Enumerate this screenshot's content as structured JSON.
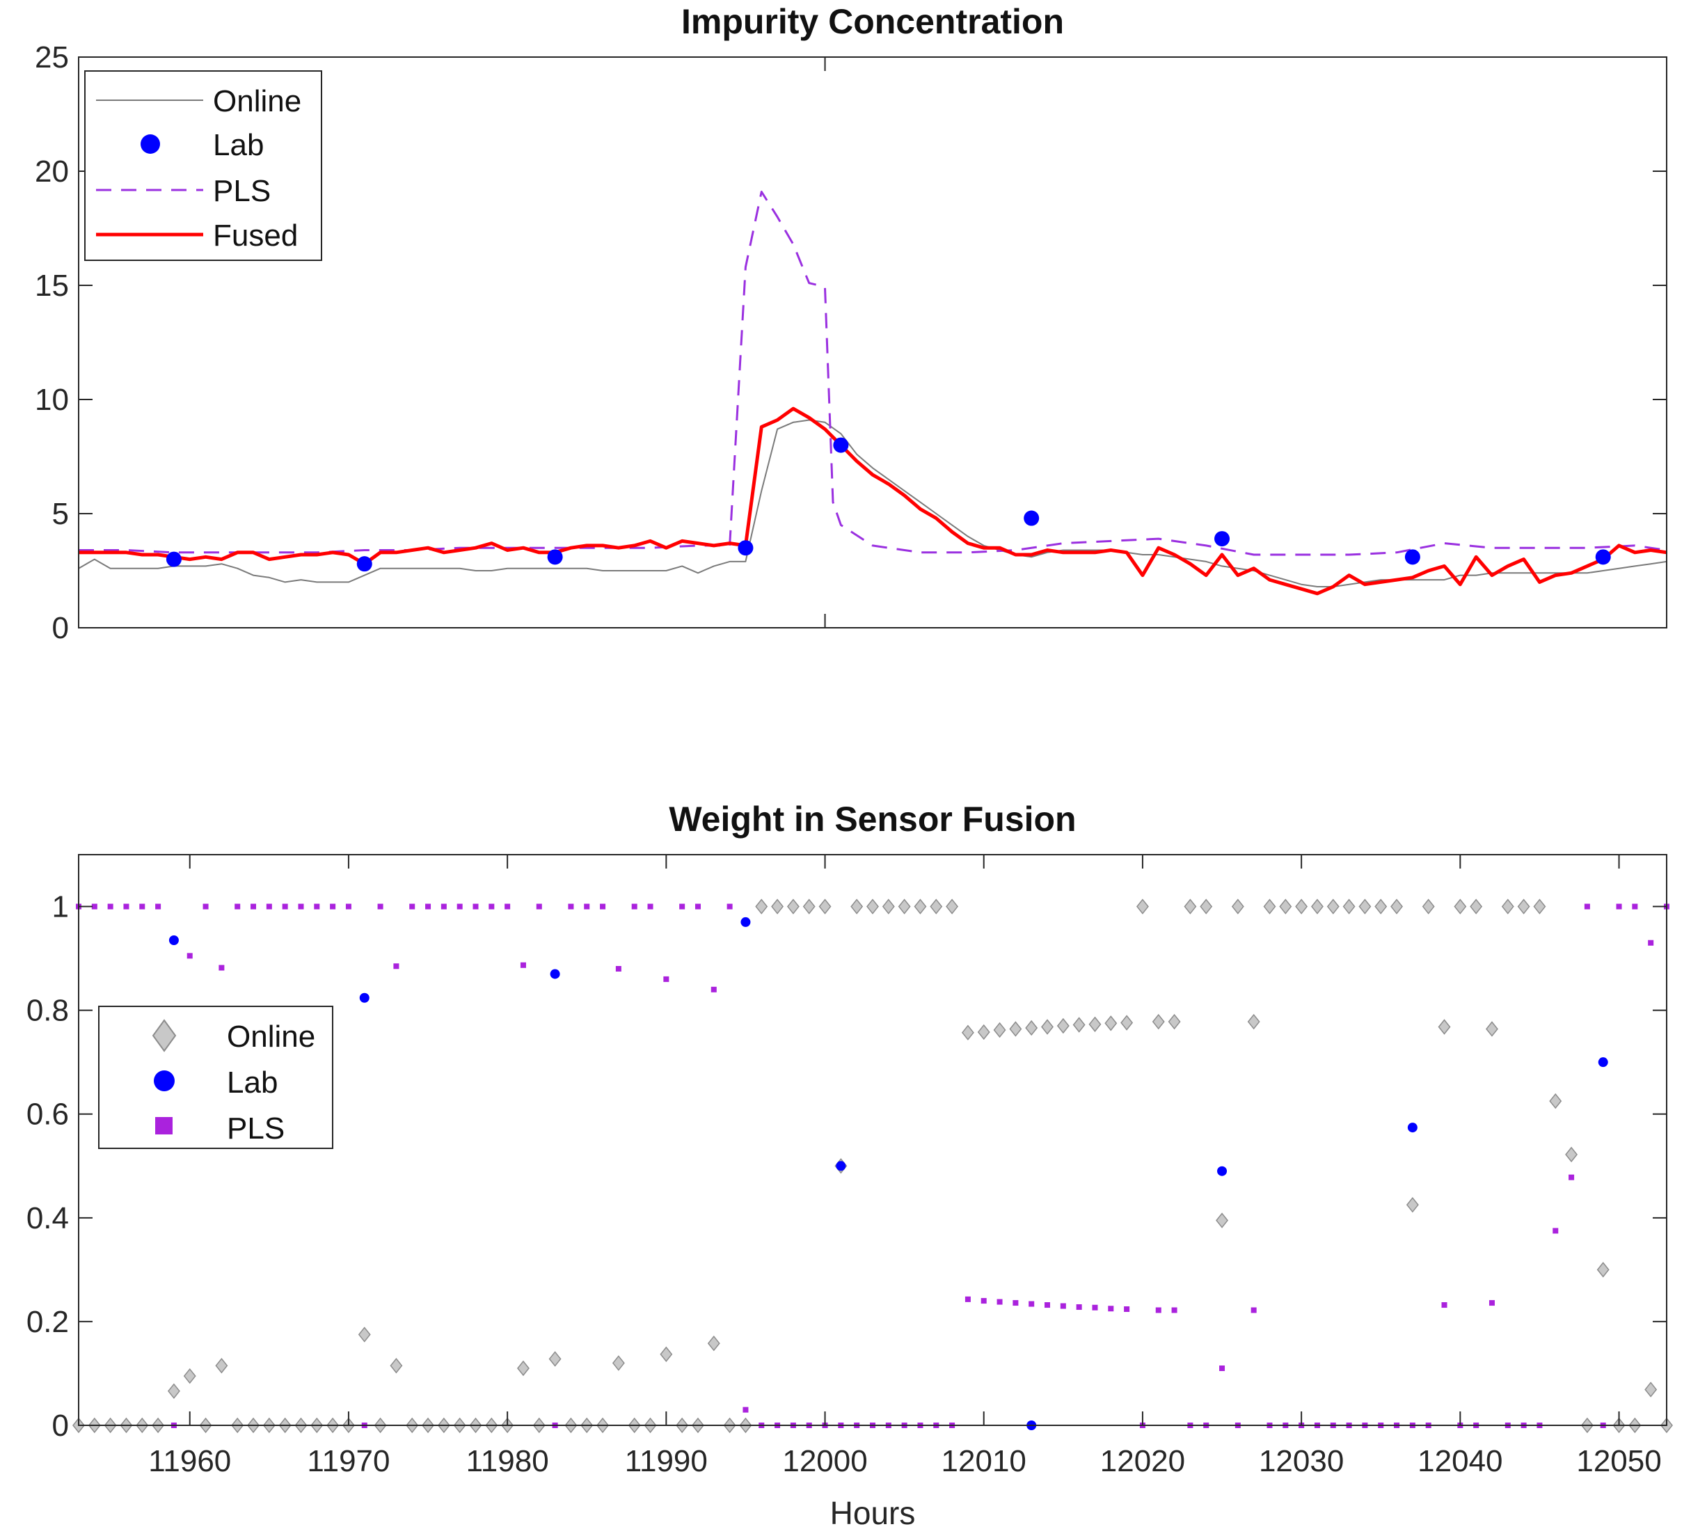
{
  "chart_data": [
    {
      "type": "line",
      "title": "Impurity Concentration",
      "xlabel": "",
      "ylabel": "",
      "xlim": [
        11953,
        12053
      ],
      "ylim": [
        0,
        25
      ],
      "yticks": [
        0,
        5,
        10,
        15,
        20,
        25
      ],
      "ytick_labels": [
        "0",
        "5",
        "10",
        "15",
        "20",
        "25"
      ],
      "xticks": [
        12000
      ],
      "legend_position": "top-left",
      "series": [
        {
          "name": "Online",
          "style": "thin-line",
          "color": "#7a7a7a",
          "x": [
            11953,
            11954,
            11955,
            11956,
            11957,
            11958,
            11959,
            11960,
            11961,
            11962,
            11963,
            11964,
            11965,
            11966,
            11967,
            11968,
            11969,
            11970,
            11971,
            11972,
            11973,
            11974,
            11975,
            11976,
            11977,
            11978,
            11979,
            11980,
            11981,
            11982,
            11983,
            11984,
            11985,
            11986,
            11987,
            11988,
            11989,
            11990,
            11991,
            11992,
            11993,
            11994,
            11995,
            11996,
            11997,
            11998,
            11999,
            12000,
            12001,
            12002,
            12003,
            12004,
            12005,
            12006,
            12007,
            12008,
            12009,
            12010,
            12011,
            12012,
            12013,
            12014,
            12015,
            12016,
            12017,
            12018,
            12019,
            12020,
            12021,
            12022,
            12023,
            12024,
            12025,
            12026,
            12027,
            12028,
            12029,
            12030,
            12031,
            12032,
            12033,
            12034,
            12035,
            12036,
            12037,
            12038,
            12039,
            12040,
            12041,
            12042,
            12043,
            12044,
            12045,
            12046,
            12047,
            12048,
            12049,
            12050,
            12051,
            12052,
            12053
          ],
          "values": [
            2.6,
            3.0,
            2.6,
            2.6,
            2.6,
            2.6,
            2.7,
            2.7,
            2.7,
            2.8,
            2.6,
            2.3,
            2.2,
            2.0,
            2.1,
            2.0,
            2.0,
            2.0,
            2.3,
            2.6,
            2.6,
            2.6,
            2.6,
            2.6,
            2.6,
            2.5,
            2.5,
            2.6,
            2.6,
            2.6,
            2.6,
            2.6,
            2.6,
            2.5,
            2.5,
            2.5,
            2.5,
            2.5,
            2.7,
            2.4,
            2.7,
            2.9,
            2.9,
            6.0,
            8.7,
            9.0,
            9.1,
            9.0,
            8.5,
            7.6,
            7.0,
            6.5,
            6.0,
            5.5,
            5.0,
            4.5,
            4.0,
            3.6,
            3.4,
            3.2,
            3.1,
            3.3,
            3.4,
            3.4,
            3.4,
            3.4,
            3.3,
            3.2,
            3.2,
            3.1,
            3.0,
            2.9,
            2.7,
            2.6,
            2.5,
            2.3,
            2.1,
            1.9,
            1.8,
            1.8,
            1.9,
            2.0,
            2.1,
            2.1,
            2.1,
            2.1,
            2.1,
            2.3,
            2.3,
            2.4,
            2.4,
            2.4,
            2.4,
            2.4,
            2.4,
            2.4,
            2.5,
            2.6,
            2.7,
            2.8,
            2.9
          ]
        },
        {
          "name": "Lab",
          "style": "markers",
          "color": "#0000ff",
          "x": [
            11959,
            11971,
            11983,
            11995,
            12001,
            12013,
            12025,
            12037,
            12049
          ],
          "values": [
            3.0,
            2.8,
            3.1,
            3.5,
            8.0,
            4.8,
            3.9,
            3.1,
            3.1
          ]
        },
        {
          "name": "PLS",
          "style": "dashed-line",
          "color": "#9a30e0",
          "x": [
            11953,
            11956,
            11959,
            11962,
            11965,
            11968,
            11971,
            11974,
            11977,
            11980,
            11983,
            11986,
            11989,
            11992,
            11994,
            11995,
            11996,
            11997,
            11998,
            11999,
            11999.6,
            12000,
            12000.5,
            12001,
            12003,
            12006,
            12009,
            12012,
            12015,
            12018,
            12021,
            12024,
            12027,
            12030,
            12033,
            12036,
            12039,
            12042,
            12045,
            12048,
            12051,
            12053
          ],
          "values": [
            3.4,
            3.4,
            3.3,
            3.3,
            3.3,
            3.3,
            3.4,
            3.4,
            3.5,
            3.5,
            3.5,
            3.5,
            3.5,
            3.6,
            3.6,
            15.8,
            19.1,
            18.0,
            16.8,
            15.1,
            15.0,
            14.9,
            5.5,
            4.5,
            3.6,
            3.3,
            3.3,
            3.4,
            3.7,
            3.8,
            3.9,
            3.6,
            3.2,
            3.2,
            3.2,
            3.3,
            3.7,
            3.5,
            3.5,
            3.5,
            3.6,
            3.4
          ]
        },
        {
          "name": "Fused",
          "style": "thick-line",
          "color": "#ff0000",
          "x": [
            11953,
            11954,
            11955,
            11956,
            11957,
            11958,
            11959,
            11960,
            11961,
            11962,
            11963,
            11964,
            11965,
            11966,
            11967,
            11968,
            11969,
            11970,
            11971,
            11972,
            11973,
            11974,
            11975,
            11976,
            11977,
            11978,
            11979,
            11980,
            11981,
            11982,
            11983,
            11984,
            11985,
            11986,
            11987,
            11988,
            11989,
            11990,
            11991,
            11992,
            11993,
            11994,
            11995,
            11996,
            11997,
            11998,
            11999,
            12000,
            12001,
            12002,
            12003,
            12004,
            12005,
            12006,
            12007,
            12008,
            12009,
            12010,
            12011,
            12012,
            12013,
            12014,
            12015,
            12016,
            12017,
            12018,
            12019,
            12020,
            12021,
            12022,
            12023,
            12024,
            12025,
            12026,
            12027,
            12028,
            12029,
            12030,
            12031,
            12032,
            12033,
            12034,
            12035,
            12036,
            12037,
            12038,
            12039,
            12040,
            12041,
            12042,
            12043,
            12044,
            12045,
            12046,
            12047,
            12048,
            12049,
            12050,
            12051,
            12052,
            12053
          ],
          "values": [
            3.3,
            3.3,
            3.3,
            3.3,
            3.2,
            3.2,
            3.1,
            3.0,
            3.1,
            3.0,
            3.3,
            3.3,
            3.0,
            3.1,
            3.2,
            3.2,
            3.3,
            3.2,
            2.8,
            3.3,
            3.3,
            3.4,
            3.5,
            3.3,
            3.4,
            3.5,
            3.7,
            3.4,
            3.5,
            3.3,
            3.3,
            3.5,
            3.6,
            3.6,
            3.5,
            3.6,
            3.8,
            3.5,
            3.8,
            3.7,
            3.6,
            3.7,
            3.6,
            8.8,
            9.1,
            9.6,
            9.2,
            8.7,
            8.0,
            7.3,
            6.7,
            6.3,
            5.8,
            5.2,
            4.8,
            4.2,
            3.7,
            3.5,
            3.5,
            3.2,
            3.2,
            3.4,
            3.3,
            3.3,
            3.3,
            3.4,
            3.3,
            2.3,
            3.5,
            3.2,
            2.8,
            2.3,
            3.2,
            2.3,
            2.6,
            2.1,
            1.9,
            1.7,
            1.5,
            1.8,
            2.3,
            1.9,
            2.0,
            2.1,
            2.2,
            2.5,
            2.7,
            1.9,
            3.1,
            2.3,
            2.7,
            3.0,
            2.0,
            2.3,
            2.4,
            2.7,
            3.0,
            3.6,
            3.3,
            3.4,
            3.3
          ]
        }
      ]
    },
    {
      "type": "scatter",
      "title": "Weight in Sensor Fusion",
      "xlabel": "Hours",
      "ylabel": "",
      "xlim": [
        11953,
        12053
      ],
      "ylim": [
        0,
        1.1
      ],
      "yticks": [
        0,
        0.2,
        0.4,
        0.6,
        0.8,
        1
      ],
      "ytick_labels": [
        "0",
        "0.2",
        "0.4",
        "0.6",
        "0.8",
        "1"
      ],
      "xticks": [
        11960,
        11970,
        11980,
        11990,
        12000,
        12010,
        12020,
        12030,
        12040,
        12050
      ],
      "xtick_labels": [
        "11960",
        "11970",
        "11980",
        "11990",
        "12000",
        "12010",
        "12020",
        "12030",
        "12040",
        "12050"
      ],
      "legend_position": "middle-left",
      "series": [
        {
          "name": "Online",
          "marker": "diamond",
          "color": "#c8c8c8",
          "x": [
            11953,
            11954,
            11955,
            11956,
            11957,
            11958,
            11959,
            11960,
            11961,
            11962,
            11963,
            11964,
            11965,
            11966,
            11967,
            11968,
            11969,
            11970,
            11971,
            11972,
            11973,
            11974,
            11975,
            11976,
            11977,
            11978,
            11979,
            11980,
            11981,
            11982,
            11983,
            11984,
            11985,
            11986,
            11987,
            11988,
            11989,
            11990,
            11991,
            11992,
            11993,
            11994,
            11995,
            11996,
            11997,
            11998,
            11999,
            12000,
            12001,
            12002,
            12003,
            12004,
            12005,
            12006,
            12007,
            12008,
            12009,
            12010,
            12011,
            12012,
            12013,
            12014,
            12015,
            12016,
            12017,
            12018,
            12019,
            12020,
            12021,
            12022,
            12023,
            12024,
            12025,
            12026,
            12027,
            12028,
            12029,
            12030,
            12031,
            12032,
            12033,
            12034,
            12035,
            12036,
            12037,
            12038,
            12039,
            12040,
            12041,
            12042,
            12043,
            12044,
            12045,
            12046,
            12047,
            12048,
            12049,
            12050,
            12051,
            12052,
            12053
          ],
          "values": [
            0,
            0,
            0,
            0,
            0,
            0,
            0.066,
            0.095,
            0,
            0.115,
            0,
            0,
            0,
            0,
            0,
            0,
            0,
            0,
            0.175,
            0,
            0.115,
            0,
            0,
            0,
            0,
            0,
            0,
            0,
            0.11,
            0,
            0.128,
            0,
            0,
            0,
            0.12,
            0,
            0,
            0.137,
            0,
            0,
            0.158,
            0,
            0,
            1,
            1,
            1,
            1,
            1,
            0.5,
            1,
            1,
            1,
            1,
            1,
            1,
            1,
            0.757,
            0.758,
            0.762,
            0.764,
            0.766,
            0.768,
            0.77,
            0.772,
            0.773,
            0.775,
            0.776,
            1,
            0.778,
            0.778,
            1,
            1,
            0.395,
            1,
            0.778,
            1,
            1,
            1,
            1,
            1,
            1,
            1,
            1,
            1,
            0.425,
            1,
            0.768,
            1,
            1,
            0.764,
            1,
            1,
            1,
            0.625,
            0.522,
            0,
            0.3,
            0,
            0,
            0.069,
            0
          ]
        },
        {
          "name": "Lab",
          "marker": "circle",
          "color": "#0000ff",
          "x": [
            11959,
            11971,
            11983,
            11995,
            12001,
            12013,
            12025,
            12037,
            12049
          ],
          "values": [
            0.935,
            0.824,
            0.87,
            0.97,
            0.5,
            0,
            0.49,
            0.574,
            0.7
          ]
        },
        {
          "name": "PLS",
          "marker": "square",
          "color": "#aa22dd",
          "x": [
            11953,
            11954,
            11955,
            11956,
            11957,
            11958,
            11959,
            11960,
            11961,
            11962,
            11963,
            11964,
            11965,
            11966,
            11967,
            11968,
            11969,
            11970,
            11971,
            11972,
            11973,
            11974,
            11975,
            11976,
            11977,
            11978,
            11979,
            11980,
            11981,
            11982,
            11983,
            11984,
            11985,
            11986,
            11987,
            11988,
            11989,
            11990,
            11991,
            11992,
            11993,
            11994,
            11995,
            11996,
            11997,
            11998,
            11999,
            12000,
            12001,
            12002,
            12003,
            12004,
            12005,
            12006,
            12007,
            12008,
            12009,
            12010,
            12011,
            12012,
            12013,
            12014,
            12015,
            12016,
            12017,
            12018,
            12019,
            12020,
            12021,
            12022,
            12023,
            12024,
            12025,
            12026,
            12027,
            12028,
            12029,
            12030,
            12031,
            12032,
            12033,
            12034,
            12035,
            12036,
            12037,
            12038,
            12039,
            12040,
            12041,
            12042,
            12043,
            12044,
            12045,
            12046,
            12047,
            12048,
            12049,
            12050,
            12051,
            12052,
            12053
          ],
          "values": [
            1,
            1,
            1,
            1,
            1,
            1,
            0,
            0.905,
            1,
            0.882,
            1,
            1,
            1,
            1,
            1,
            1,
            1,
            1,
            0,
            1,
            0.885,
            1,
            1,
            1,
            1,
            1,
            1,
            1,
            0.887,
            1,
            0,
            1,
            1,
            1,
            0.88,
            1,
            1,
            0.86,
            1,
            1,
            0.84,
            1,
            0.03,
            0,
            0,
            0,
            0,
            0,
            0,
            0,
            0,
            0,
            0,
            0,
            0,
            0,
            0.243,
            0.24,
            0.238,
            0.236,
            0.234,
            0.232,
            0.23,
            0.228,
            0.227,
            0.225,
            0.224,
            0,
            0.222,
            0.222,
            0,
            0,
            0.11,
            0,
            0.222,
            0,
            0,
            0,
            0,
            0,
            0,
            0,
            0,
            0,
            0,
            0,
            0.232,
            0,
            0,
            0.236,
            0,
            0,
            0,
            0.375,
            0.478,
            1,
            0,
            1,
            1,
            0.93,
            1
          ]
        }
      ]
    }
  ]
}
